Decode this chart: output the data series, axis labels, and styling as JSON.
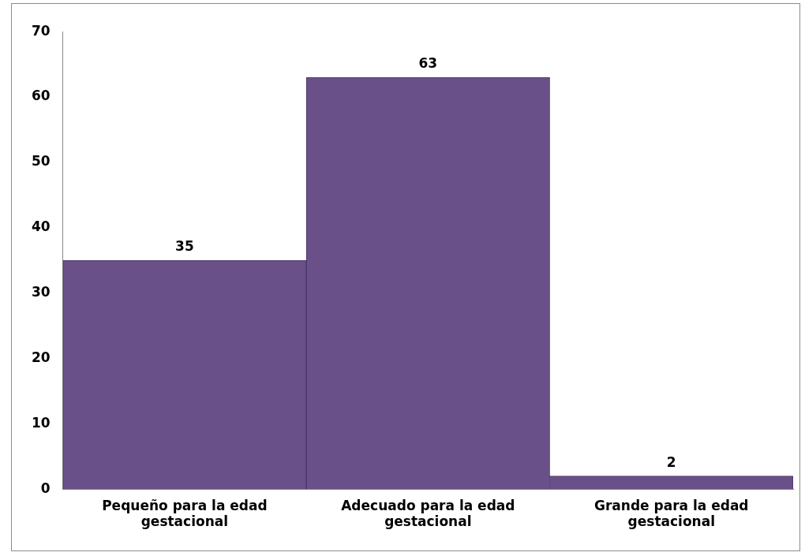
{
  "chart_data": {
    "type": "bar",
    "categories": [
      "Pequeño para la edad gestacional",
      "Adecuado para la edad gestacional",
      "Grande para la edad gestacional"
    ],
    "values": [
      35,
      63,
      2
    ],
    "color": "#6a5088",
    "ylim": [
      0,
      70
    ],
    "yticks": [
      0,
      10,
      20,
      30,
      40,
      50,
      60,
      70
    ],
    "data_labels": true,
    "grid": false,
    "legend": false
  }
}
